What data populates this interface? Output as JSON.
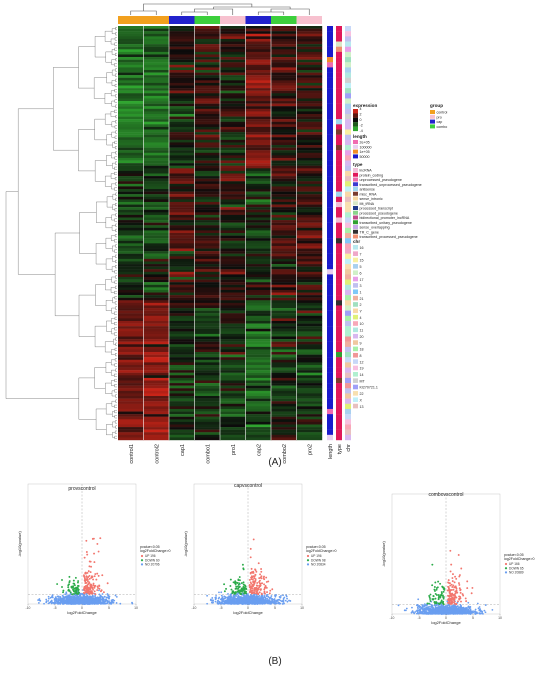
{
  "panel_a_label": "(A)",
  "panel_b_label": "(B)",
  "heatmap": {
    "columns": [
      "control1",
      "control2",
      "cap1",
      "combo1",
      "pro1",
      "cap2",
      "combo2",
      "pro2"
    ],
    "column_groups": [
      "control",
      "control",
      "cap",
      "combo",
      "pro",
      "cap",
      "combo",
      "pro"
    ],
    "annotation_columns": [
      "length",
      "type",
      "chr"
    ],
    "legend": {
      "expression": {
        "title": "expression",
        "ticks": [
          "4",
          "2",
          "0",
          "-2",
          "-4"
        ],
        "colors": [
          "#c82418",
          "#5a1810",
          "#0b0b0b",
          "#1e5a1e",
          "#2fa62f"
        ]
      },
      "group": {
        "title": "group",
        "items": [
          {
            "label": "control",
            "color": "#f2a01e"
          },
          {
            "label": "pro",
            "color": "#f7c1cf"
          },
          {
            "label": "cap",
            "color": "#2222cc"
          },
          {
            "label": "combo",
            "color": "#3ccf3c"
          }
        ]
      },
      "length": {
        "title": "length",
        "items": [
          {
            "label": "2e+05",
            "color": "#f06bb0"
          },
          {
            "label": "100000",
            "color": "#e9d0f0"
          },
          {
            "label": "1e+05",
            "color": "#f28c28"
          },
          {
            "label": "50000",
            "color": "#1a1acc"
          }
        ]
      },
      "type": {
        "title": "type",
        "items": [
          {
            "label": "lncRNA",
            "color": "#f0c0d8"
          },
          {
            "label": "protein_coding",
            "color": "#e0185a"
          },
          {
            "label": "unprocessed_pseudogene",
            "color": "#ed6aa8"
          },
          {
            "label": "transcribed_unprocessed_pseudogene",
            "color": "#3a3ad0"
          },
          {
            "label": "antisense",
            "color": "#9fd7ef"
          },
          {
            "label": "misc_RNA",
            "color": "#7a3c2e"
          },
          {
            "label": "sense_intronic",
            "color": "#f7d7a0"
          },
          {
            "label": "Mt_tRNA",
            "color": "#d8e8c8"
          },
          {
            "label": "processed_transcript",
            "color": "#1f3a8a"
          },
          {
            "label": "processed_pseudogene",
            "color": "#8ad48a"
          },
          {
            "label": "bidirectional_promoter_lncRNA",
            "color": "#c04a8a"
          },
          {
            "label": "transcribed_unitary_pseudogene",
            "color": "#30a030"
          },
          {
            "label": "sense_overlapping",
            "color": "#c8a8e8"
          },
          {
            "label": "TR_C_gene",
            "color": "#303030"
          },
          {
            "label": "transcribed_processed_pseudogene",
            "color": "#f09070"
          }
        ]
      },
      "chr": {
        "title": "chr",
        "items": [
          {
            "label": "16",
            "color": "#b8e8f0"
          },
          {
            "label": "7",
            "color": "#f0a8c8"
          },
          {
            "label": "15",
            "color": "#f8f0a0"
          },
          {
            "label": "5",
            "color": "#a8d0f0"
          },
          {
            "label": "6",
            "color": "#d0f0c8"
          },
          {
            "label": "17",
            "color": "#e8a0e8"
          },
          {
            "label": "3",
            "color": "#c0c0f0"
          },
          {
            "label": "1",
            "color": "#80c8f8"
          },
          {
            "label": "21",
            "color": "#f0b0a0"
          },
          {
            "label": "2",
            "color": "#a0e0c0"
          },
          {
            "label": "Y",
            "color": "#f8d8a8"
          },
          {
            "label": "4",
            "color": "#e0f078"
          },
          {
            "label": "10",
            "color": "#f8a8b8"
          },
          {
            "label": "11",
            "color": "#b0e8e0"
          },
          {
            "label": "20",
            "color": "#d8b8f0"
          },
          {
            "label": "9",
            "color": "#f0c8a0"
          },
          {
            "label": "18",
            "color": "#a8f0a8"
          },
          {
            "label": "8",
            "color": "#f09898"
          },
          {
            "label": "12",
            "color": "#c8d8f8"
          },
          {
            "label": "19",
            "color": "#f8c0e0"
          },
          {
            "label": "14",
            "color": "#b0f0d0"
          },
          {
            "label": "MT",
            "color": "#d0d0d0"
          },
          {
            "label": "KI270721.1",
            "color": "#a0a0f8"
          },
          {
            "label": "22",
            "color": "#f8e0b0"
          },
          {
            "label": "X",
            "color": "#c0f0f8"
          },
          {
            "label": "13",
            "color": "#e8c0c0"
          }
        ]
      }
    }
  },
  "volcano": {
    "panels": [
      {
        "title": "provscontrol",
        "xlabel": "log2FoldChange",
        "ylabel": "-log10(pvalue)",
        "legend_title": "pvalue<0.05",
        "legend_subtitle": "log2FoldChange>0",
        "up_label": "UP 196",
        "down_label": "DOWN 60",
        "ns_label": "NO 20796",
        "xticks": [
          "-10",
          "-5",
          "0",
          "5",
          "10"
        ],
        "xlim": [
          -10,
          10
        ],
        "ylim": [
          0,
          16
        ],
        "up_n": 196,
        "down_n": 60
      },
      {
        "title": "capvscontrol",
        "xlabel": "log2FoldChange",
        "ylabel": "-log10(pvalue)",
        "legend_title": "pvalue<0.05",
        "legend_subtitle": "log2FoldChange>0",
        "up_label": "UP 196",
        "down_label": "DOWN 98",
        "ns_label": "NO 20834",
        "xticks": [
          "-10",
          "-5",
          "0",
          "5",
          "10"
        ],
        "xlim": [
          -10,
          10
        ],
        "ylim": [
          0,
          16
        ],
        "up_n": 196,
        "down_n": 98
      },
      {
        "title": "combovscontrol",
        "xlabel": "log2FoldChange",
        "ylabel": "-log10(pvalue)",
        "legend_title": "pvalue<0.05",
        "legend_subtitle": "log2FoldChange>0",
        "up_label": "UP 166",
        "down_label": "DOWN 65",
        "ns_label": "NO 20889",
        "xticks": [
          "-10",
          "-5",
          "0",
          "5",
          "10"
        ],
        "xlim": [
          -10,
          10
        ],
        "ylim": [
          0,
          16
        ],
        "up_n": 166,
        "down_n": 65
      }
    ],
    "colors": {
      "up": "#f2766e",
      "down": "#2cab4a",
      "ns": "#6a9ef0"
    }
  },
  "chart_data": [
    {
      "type": "heatmap",
      "columns": [
        "control1",
        "control2",
        "cap1",
        "combo1",
        "pro1",
        "cap2",
        "combo2",
        "pro2"
      ],
      "color_scale": {
        "min": -4,
        "max": 4,
        "low_color": "#2fa62f",
        "mid_color": "#0b0b0b",
        "high_color": "#c82418"
      }
    },
    {
      "type": "scatter",
      "title": "provscontrol",
      "xlabel": "log2FoldChange",
      "ylabel": "-log10(pvalue)",
      "series": [
        {
          "name": "UP 196",
          "count": 196
        },
        {
          "name": "DOWN 60",
          "count": 60
        },
        {
          "name": "NO 20796",
          "count": 20796
        }
      ]
    },
    {
      "type": "scatter",
      "title": "capvscontrol",
      "xlabel": "log2FoldChange",
      "ylabel": "-log10(pvalue)",
      "series": [
        {
          "name": "UP 196",
          "count": 196
        },
        {
          "name": "DOWN 98",
          "count": 98
        },
        {
          "name": "NO 20834",
          "count": 20834
        }
      ]
    },
    {
      "type": "scatter",
      "title": "combovscontrol",
      "xlabel": "log2FoldChange",
      "ylabel": "-log10(pvalue)",
      "series": [
        {
          "name": "UP 166",
          "count": 166
        },
        {
          "name": "DOWN 65",
          "count": 65
        },
        {
          "name": "NO 20889",
          "count": 20889
        }
      ]
    }
  ]
}
